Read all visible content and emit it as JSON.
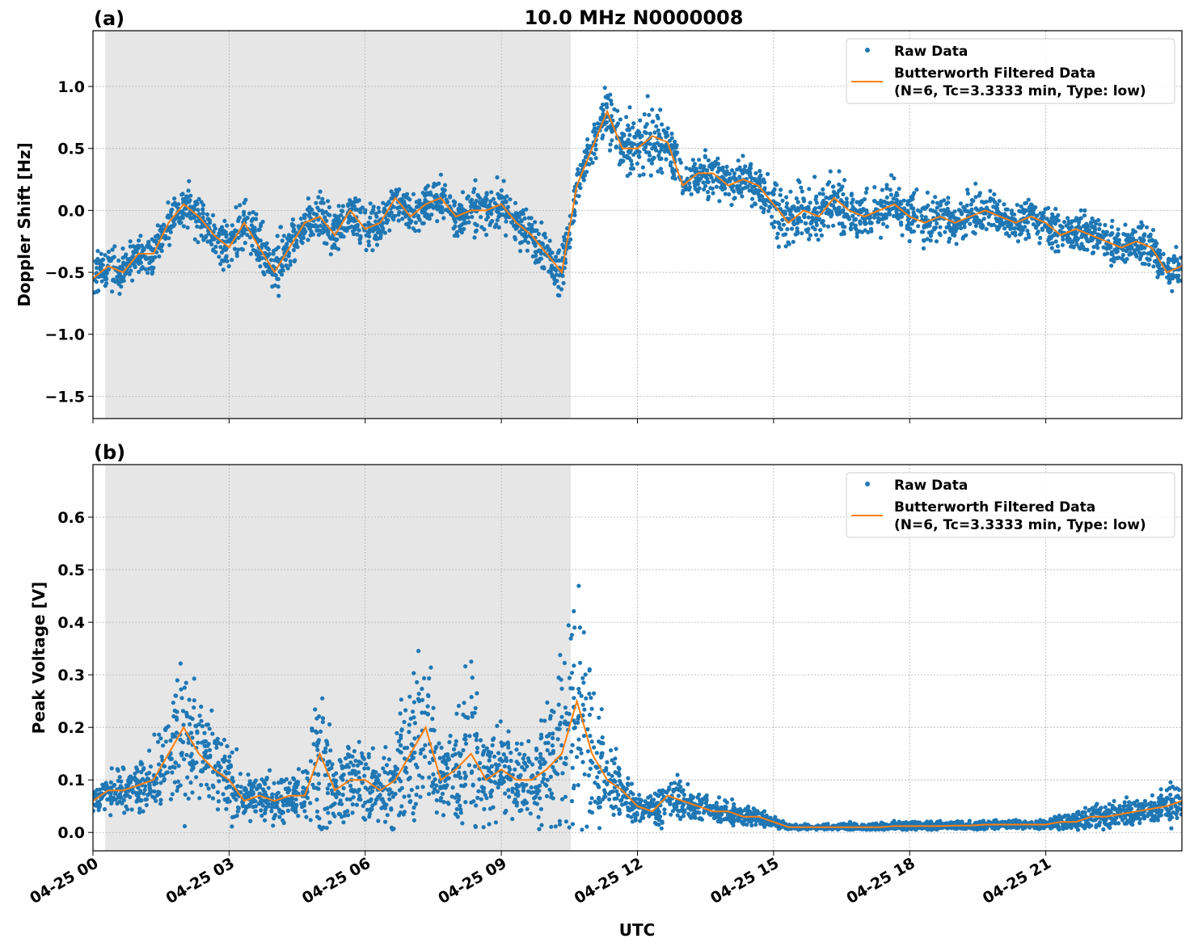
{
  "title": "10.0 MHz N0000008",
  "xlabel": "UTC",
  "x_tick_labels": [
    "04-25 00",
    "04-25 03",
    "04-25 06",
    "04-25 09",
    "04-25 12",
    "04-25 15",
    "04-25 18",
    "04-25 21"
  ],
  "colors": {
    "raw": "#1f77b4",
    "filtered": "#ff7f0e",
    "shade": "#e6e6e6"
  },
  "legend": {
    "raw": "Raw Data",
    "filtered_line1": "Butterworth Filtered Data",
    "filtered_line2": "(N=6, Tc=3.3333 min, Type: low)",
    "placement": "top-right"
  },
  "chart_data": [
    {
      "type": "scatter+line",
      "panel_label": "(a)",
      "ylabel": "Doppler Shift [Hz]",
      "x_unit": "hours UTC on 04-25",
      "xlim": [
        0,
        24
      ],
      "ylim": [
        -1.68,
        1.45
      ],
      "y_ticks": [
        -1.5,
        -1.0,
        -0.5,
        0.0,
        0.5,
        1.0
      ],
      "y_tick_labels": [
        "−1.5",
        "−1.0",
        "−0.5",
        "0.0",
        "0.5",
        "1.0"
      ],
      "grid": true,
      "shaded_span_hours": [
        0.27,
        10.53
      ],
      "x_step_hours": 0.3333,
      "filtered": [
        -0.55,
        -0.45,
        -0.5,
        -0.35,
        -0.35,
        -0.1,
        0.05,
        -0.05,
        -0.2,
        -0.3,
        -0.1,
        -0.3,
        -0.5,
        -0.3,
        -0.1,
        -0.05,
        -0.2,
        0.0,
        -0.15,
        -0.1,
        0.1,
        -0.05,
        0.05,
        0.1,
        -0.05,
        0.0,
        0.0,
        0.05,
        -0.1,
        -0.2,
        -0.35,
        -0.5,
        0.2,
        0.5,
        0.8,
        0.5,
        0.5,
        0.6,
        0.55,
        0.2,
        0.3,
        0.3,
        0.2,
        0.25,
        0.2,
        0.05,
        -0.1,
        0.0,
        -0.05,
        0.1,
        0.0,
        -0.05,
        0.0,
        0.05,
        -0.05,
        -0.1,
        -0.05,
        -0.1,
        -0.05,
        0.0,
        -0.05,
        -0.1,
        -0.05,
        -0.1,
        -0.2,
        -0.15,
        -0.2,
        -0.25,
        -0.3,
        -0.25,
        -0.3,
        -0.5,
        -0.45
      ],
      "raw_spread": [
        0.3,
        0.3,
        0.3,
        0.25,
        0.25,
        0.3,
        0.3,
        0.3,
        0.3,
        0.4,
        0.35,
        0.35,
        0.45,
        0.35,
        0.3,
        0.3,
        0.3,
        0.3,
        0.3,
        0.3,
        0.35,
        0.3,
        0.3,
        0.3,
        0.3,
        0.3,
        0.3,
        0.3,
        0.3,
        0.3,
        0.3,
        0.35,
        0.3,
        0.3,
        0.35,
        0.4,
        0.45,
        0.45,
        0.4,
        0.3,
        0.3,
        0.3,
        0.3,
        0.3,
        0.3,
        0.4,
        0.4,
        0.35,
        0.4,
        0.45,
        0.35,
        0.35,
        0.35,
        0.4,
        0.35,
        0.35,
        0.3,
        0.3,
        0.3,
        0.3,
        0.25,
        0.25,
        0.25,
        0.25,
        0.3,
        0.3,
        0.3,
        0.3,
        0.25,
        0.25,
        0.3,
        0.3,
        0.3
      ]
    },
    {
      "type": "scatter+line",
      "panel_label": "(b)",
      "ylabel": "Peak Voltage [V]",
      "x_unit": "hours UTC on 04-25",
      "xlim": [
        0,
        24
      ],
      "ylim": [
        -0.035,
        0.7
      ],
      "y_ticks": [
        0.0,
        0.1,
        0.2,
        0.3,
        0.4,
        0.5,
        0.6
      ],
      "y_tick_labels": [
        "0.0",
        "0.1",
        "0.2",
        "0.3",
        "0.4",
        "0.5",
        "0.6"
      ],
      "grid": true,
      "shaded_span_hours": [
        0.27,
        10.53
      ],
      "x_step_hours": 0.3333,
      "filtered": [
        0.06,
        0.08,
        0.08,
        0.09,
        0.1,
        0.15,
        0.2,
        0.15,
        0.12,
        0.1,
        0.06,
        0.07,
        0.06,
        0.07,
        0.07,
        0.15,
        0.08,
        0.1,
        0.1,
        0.08,
        0.1,
        0.15,
        0.2,
        0.1,
        0.12,
        0.15,
        0.1,
        0.12,
        0.1,
        0.1,
        0.12,
        0.15,
        0.25,
        0.15,
        0.1,
        0.08,
        0.05,
        0.04,
        0.07,
        0.06,
        0.05,
        0.04,
        0.04,
        0.03,
        0.03,
        0.02,
        0.01,
        0.01,
        0.01,
        0.01,
        0.01,
        0.01,
        0.01,
        0.012,
        0.012,
        0.012,
        0.012,
        0.013,
        0.013,
        0.015,
        0.015,
        0.015,
        0.015,
        0.015,
        0.02,
        0.02,
        0.03,
        0.03,
        0.035,
        0.04,
        0.045,
        0.05,
        0.06
      ],
      "raw_spread": [
        0.05,
        0.06,
        0.07,
        0.08,
        0.1,
        0.15,
        0.3,
        0.2,
        0.15,
        0.12,
        0.08,
        0.07,
        0.07,
        0.08,
        0.1,
        0.3,
        0.1,
        0.15,
        0.15,
        0.1,
        0.2,
        0.25,
        0.25,
        0.15,
        0.2,
        0.35,
        0.15,
        0.15,
        0.12,
        0.15,
        0.2,
        0.35,
        0.4,
        0.25,
        0.15,
        0.1,
        0.04,
        0.05,
        0.08,
        0.07,
        0.05,
        0.04,
        0.04,
        0.03,
        0.03,
        0.02,
        0.01,
        0.01,
        0.01,
        0.012,
        0.012,
        0.012,
        0.015,
        0.02,
        0.015,
        0.015,
        0.015,
        0.015,
        0.015,
        0.015,
        0.015,
        0.015,
        0.015,
        0.015,
        0.03,
        0.04,
        0.04,
        0.04,
        0.04,
        0.05,
        0.05,
        0.06,
        0.08
      ]
    }
  ]
}
